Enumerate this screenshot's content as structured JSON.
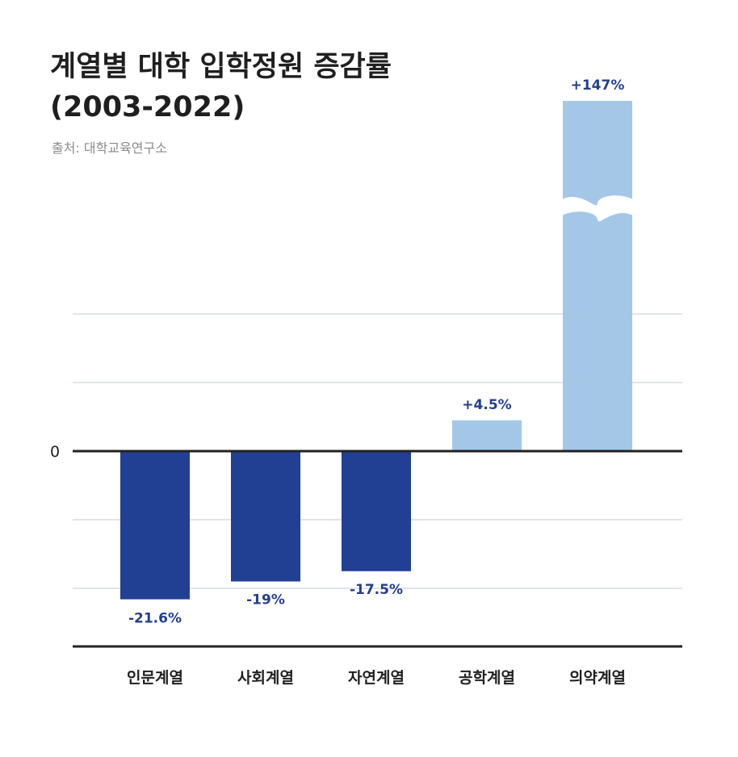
{
  "title": {
    "line1": "계열별 대학 입학정원 증감률",
    "line2": "(2003-2022)"
  },
  "source": "출처: 대학교육연구소",
  "chart_data": {
    "type": "bar",
    "categories": [
      "인문계열",
      "사회계열",
      "자연계열",
      "공학계열",
      "의약계열"
    ],
    "values": [
      -21.6,
      -19,
      -17.5,
      4.5,
      147
    ],
    "value_labels": [
      "-21.6%",
      "-19%",
      "-17.5%",
      "+4.5%",
      "+147%"
    ],
    "zero_label": "0",
    "axis_break": {
      "category": "의약계열"
    },
    "colors": {
      "negative": "#213f93",
      "positive": "#a4c7e8"
    }
  }
}
